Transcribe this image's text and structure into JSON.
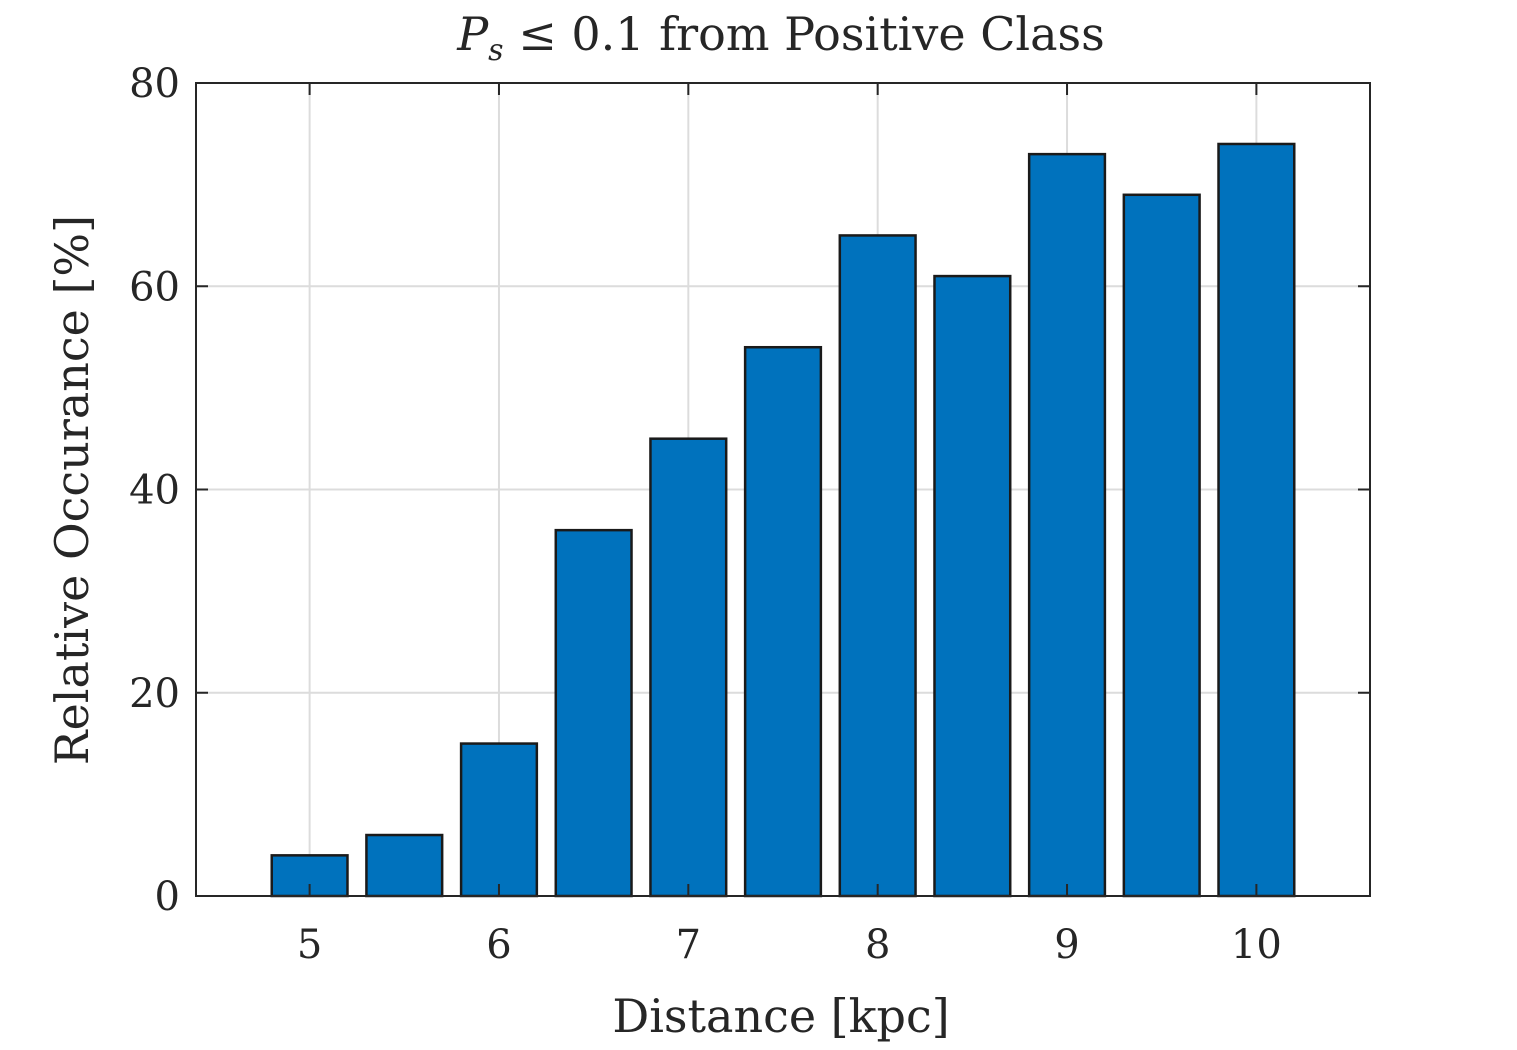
{
  "chart_data": {
    "type": "bar",
    "title_prefix": "P",
    "title_sub": "s",
    "title_rest": " ≤ 0.1 from Positive Class",
    "xlabel": "Distance [kpc]",
    "ylabel": "Relative Occurance [%]",
    "x": [
      5,
      5.5,
      6,
      6.5,
      7,
      7.5,
      8,
      8.5,
      9,
      9.5,
      10
    ],
    "values": [
      4,
      6,
      15,
      36,
      45,
      54,
      65,
      61,
      73,
      69,
      74
    ],
    "xlim": [
      4.4,
      10.6
    ],
    "ylim": [
      0,
      80
    ],
    "xticks": [
      5,
      6,
      7,
      8,
      9,
      10
    ],
    "yticks": [
      0,
      20,
      40,
      60,
      80
    ],
    "grid": true,
    "bar_color": "#0072BD",
    "bar_width": 0.4
  }
}
